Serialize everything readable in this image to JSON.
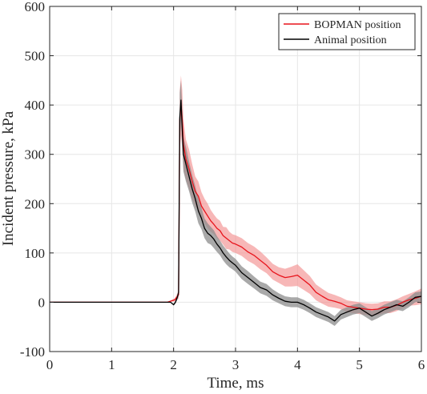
{
  "chart_data": {
    "type": "line",
    "title": "",
    "xlabel": "Time, ms",
    "ylabel": "Incident pressure, kPa",
    "xlim": [
      0,
      6
    ],
    "ylim": [
      -100,
      600
    ],
    "xticks": [
      "0",
      "1",
      "2",
      "3",
      "4",
      "5",
      "6"
    ],
    "yticks": [
      "-100",
      "0",
      "100",
      "200",
      "300",
      "400",
      "500",
      "600"
    ],
    "grid": true,
    "legend_position": "top-right",
    "series": [
      {
        "name": "BOPMAN position",
        "color": "#e8141c",
        "band_color": "#f29090",
        "x": [
          0,
          1.9,
          2.02,
          2.05,
          2.08,
          2.1,
          2.12,
          2.14,
          2.16,
          2.2,
          2.25,
          2.3,
          2.35,
          2.4,
          2.45,
          2.5,
          2.55,
          2.6,
          2.65,
          2.7,
          2.75,
          2.8,
          2.85,
          2.9,
          2.95,
          3.0,
          3.1,
          3.2,
          3.3,
          3.4,
          3.5,
          3.6,
          3.7,
          3.8,
          3.9,
          4.0,
          4.1,
          4.2,
          4.3,
          4.4,
          4.5,
          4.6,
          4.7,
          4.8,
          4.9,
          5.0,
          5.1,
          5.2,
          5.3,
          5.4,
          5.5,
          5.6,
          5.7,
          5.8,
          5.9,
          6.0
        ],
        "y": [
          0,
          0,
          5,
          10,
          15,
          370,
          400,
          370,
          320,
          290,
          270,
          245,
          225,
          215,
          195,
          185,
          175,
          165,
          158,
          150,
          145,
          135,
          130,
          125,
          120,
          118,
          112,
          102,
          95,
          85,
          75,
          62,
          55,
          50,
          52,
          55,
          45,
          35,
          20,
          12,
          5,
          2,
          -2,
          -8,
          -10,
          -12,
          -14,
          -15,
          -14,
          -10,
          -10,
          -6,
          0,
          5,
          8,
          12
        ],
        "band_half_width": [
          0,
          0,
          3,
          5,
          8,
          60,
          60,
          60,
          50,
          40,
          40,
          35,
          30,
          30,
          28,
          25,
          25,
          22,
          20,
          20,
          20,
          18,
          22,
          18,
          18,
          18,
          18,
          18,
          18,
          18,
          16,
          16,
          16,
          18,
          20,
          22,
          20,
          18,
          16,
          15,
          14,
          13,
          12,
          12,
          12,
          12,
          12,
          12,
          12,
          12,
          12,
          12,
          12,
          12,
          14,
          16
        ]
      },
      {
        "name": "Animal position",
        "color": "#000000",
        "band_color": "#8c8c8c",
        "x": [
          0,
          1.95,
          2.0,
          2.03,
          2.06,
          2.08,
          2.1,
          2.12,
          2.14,
          2.16,
          2.2,
          2.25,
          2.3,
          2.35,
          2.4,
          2.45,
          2.5,
          2.55,
          2.6,
          2.65,
          2.7,
          2.75,
          2.8,
          2.85,
          2.9,
          2.95,
          3.0,
          3.1,
          3.2,
          3.3,
          3.4,
          3.5,
          3.6,
          3.7,
          3.8,
          3.9,
          4.0,
          4.1,
          4.2,
          4.3,
          4.4,
          4.5,
          4.6,
          4.7,
          4.8,
          4.9,
          5.0,
          5.1,
          5.2,
          5.3,
          5.4,
          5.5,
          5.6,
          5.7,
          5.8,
          5.9,
          6.0
        ],
        "y": [
          0,
          0,
          -5,
          0,
          10,
          20,
          375,
          410,
          350,
          300,
          280,
          255,
          230,
          210,
          185,
          170,
          150,
          140,
          135,
          128,
          118,
          110,
          100,
          92,
          85,
          80,
          75,
          60,
          50,
          40,
          30,
          25,
          15,
          8,
          2,
          0,
          0,
          -5,
          -12,
          -20,
          -25,
          -30,
          -38,
          -25,
          -20,
          -15,
          -12,
          -20,
          -28,
          -22,
          -15,
          -10,
          -5,
          -8,
          0,
          10,
          12
        ],
        "band_half_width": [
          0,
          0,
          2,
          3,
          5,
          8,
          50,
          40,
          40,
          35,
          35,
          30,
          28,
          26,
          25,
          22,
          20,
          20,
          18,
          18,
          16,
          15,
          15,
          15,
          14,
          13,
          13,
          13,
          13,
          12,
          12,
          12,
          11,
          10,
          10,
          10,
          10,
          10,
          10,
          10,
          10,
          10,
          10,
          10,
          10,
          10,
          10,
          10,
          10,
          10,
          10,
          10,
          10,
          10,
          10,
          10,
          10
        ]
      }
    ]
  }
}
